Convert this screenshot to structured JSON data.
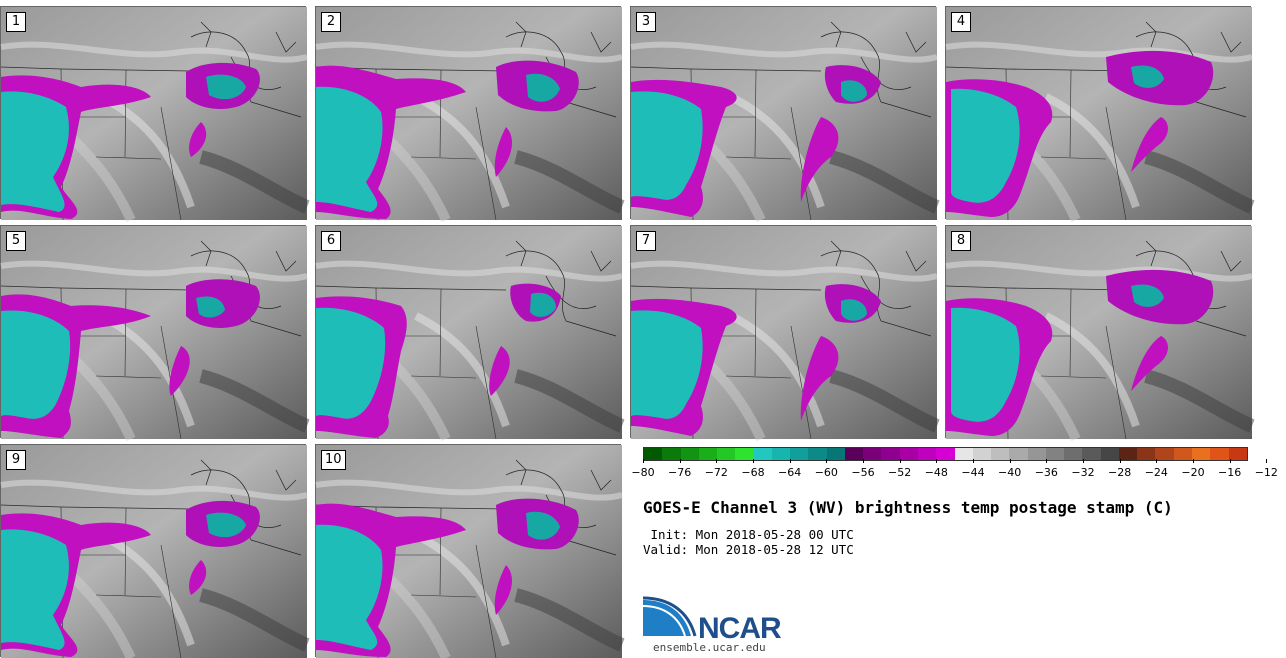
{
  "panels": [
    {
      "label": "1"
    },
    {
      "label": "2"
    },
    {
      "label": "3"
    },
    {
      "label": "4"
    },
    {
      "label": "5"
    },
    {
      "label": "6"
    },
    {
      "label": "7"
    },
    {
      "label": "8"
    },
    {
      "label": "9"
    },
    {
      "label": "10"
    }
  ],
  "colorbar": {
    "colors": [
      "#005a00",
      "#0a7a0a",
      "#129312",
      "#1aaf1a",
      "#24c824",
      "#2ee32e",
      "#20c8c0",
      "#18b4ae",
      "#129e9a",
      "#0c8a88",
      "#067676",
      "#5a005a",
      "#7a007a",
      "#90008e",
      "#a800a6",
      "#bf00bd",
      "#d600d4",
      "#e6e6e6",
      "#d2d2d2",
      "#bebebe",
      "#aaaaaa",
      "#969696",
      "#828282",
      "#6e6e6e",
      "#5a5a5a",
      "#464646",
      "#5c2414",
      "#8a3418",
      "#b0441a",
      "#d0581c",
      "#e8701e",
      "#e05418",
      "#c83812"
    ],
    "tick_labels": [
      "−80",
      "−76",
      "−72",
      "−68",
      "−64",
      "−60",
      "−56",
      "−52",
      "−48",
      "−44",
      "−40",
      "−36",
      "−32",
      "−28",
      "−24",
      "−20",
      "−16",
      "−12"
    ]
  },
  "title": "GOES-E Channel 3 (WV) brightness temp postage stamp (C)",
  "init_line": " Init: Mon 2018-05-28 00 UTC",
  "valid_line": "Valid: Mon 2018-05-28 12 UTC",
  "logo": {
    "name": "NCAR",
    "url": "ensemble.ucar.edu"
  }
}
